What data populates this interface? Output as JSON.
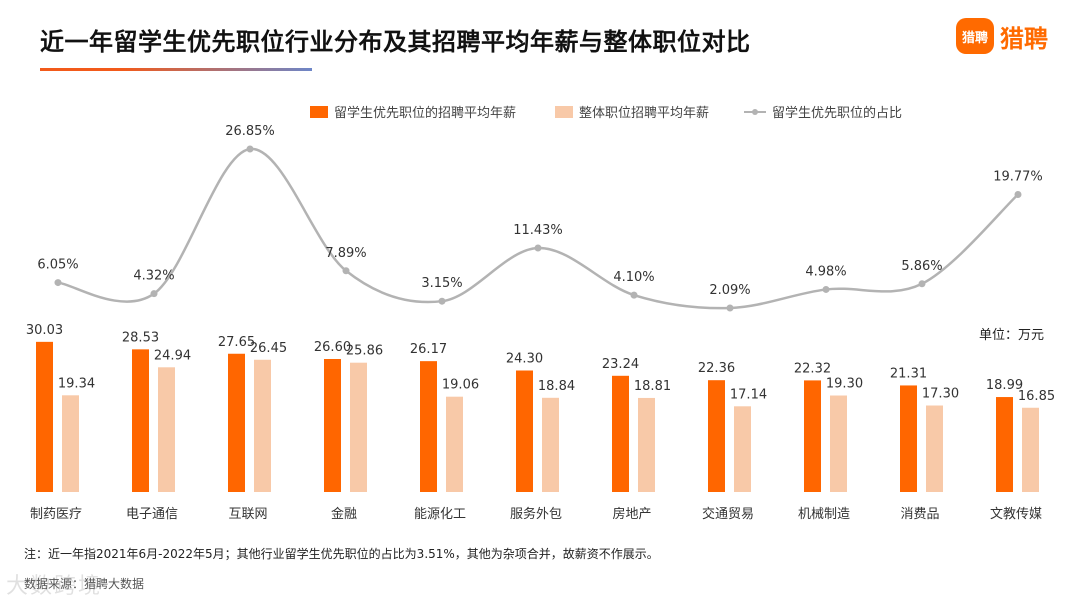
{
  "title": "近一年留学生优先职位行业分布及其招聘平均年薪与整体职位对比",
  "brand": {
    "icon_text": "猎聘",
    "name": "猎聘"
  },
  "unit": "单位：万元",
  "note": "注：近一年指2021年6月-2022年5月；其他行业留学生优先职位的占比为3.51%，其他为杂项合并，故薪资不作展示。",
  "source": "数据来源：猎聘大数据",
  "watermark": "大数跨境",
  "colors": {
    "series1": "#ff6600",
    "series2": "#f8c9a8",
    "line": "#b3b3b3",
    "accent": "#ff6a00"
  },
  "chart_data": {
    "type": "bar",
    "categories": [
      "制药医疗",
      "电子通信",
      "互联网",
      "金融",
      "能源化工",
      "服务外包",
      "房地产",
      "交通贸易",
      "机械制造",
      "消费品",
      "文教传媒"
    ],
    "series": [
      {
        "name": "留学生优先职位的招聘平均年薪",
        "type": "bar",
        "values": [
          30.03,
          28.53,
          27.65,
          26.6,
          26.17,
          24.3,
          23.24,
          22.36,
          22.32,
          21.31,
          18.99
        ],
        "labels": [
          "30.03",
          "28.53",
          "27.65",
          "26.60",
          "26.17",
          "24.30",
          "23.24",
          "22.36",
          "22.32",
          "21.31",
          "18.99"
        ]
      },
      {
        "name": "整体职位招聘平均年薪",
        "type": "bar",
        "values": [
          19.34,
          24.94,
          26.45,
          25.86,
          19.06,
          18.84,
          18.81,
          17.14,
          19.3,
          17.3,
          16.85
        ],
        "labels": [
          "19.34",
          "24.94",
          "26.45",
          "25.86",
          "19.06",
          "18.84",
          "18.81",
          "17.14",
          "19.30",
          "17.30",
          "16.85"
        ]
      },
      {
        "name": "留学生优先职位的占比",
        "type": "line",
        "smooth": true,
        "values": [
          6.05,
          4.32,
          26.85,
          7.89,
          3.15,
          11.43,
          4.1,
          2.09,
          4.98,
          5.86,
          19.77
        ],
        "labels": [
          "6.05%",
          "4.32%",
          "26.85%",
          "7.89%",
          "3.15%",
          "11.43%",
          "4.10%",
          "2.09%",
          "4.98%",
          "5.86%",
          "19.77%"
        ]
      }
    ],
    "legend_position": "top",
    "grid": false
  }
}
